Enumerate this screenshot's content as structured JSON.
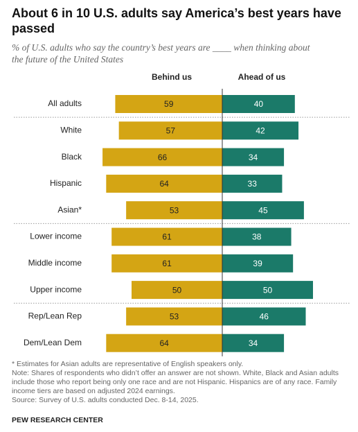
{
  "chart_data": {
    "type": "diverging-bar",
    "title": "About 6 in 10 U.S. adults say America’s best years have passed",
    "subtitle": "% of U.S. adults who say the country’s best years are ____ when thinking about the future of the United States",
    "categories": [
      "All adults",
      "White",
      "Black",
      "Hispanic",
      "Asian*",
      "Lower income",
      "Middle income",
      "Upper income",
      "Rep/Lean Rep",
      "Dem/Lean Dem"
    ],
    "series": [
      {
        "name": "Behind us",
        "color": "#d4a514",
        "values": [
          59,
          57,
          66,
          64,
          53,
          61,
          61,
          50,
          53,
          64
        ]
      },
      {
        "name": "Ahead of us",
        "color": "#1b7a69",
        "values": [
          40,
          42,
          34,
          33,
          45,
          38,
          39,
          50,
          46,
          34
        ]
      }
    ],
    "notes": [
      "* Estimates for Asian adults are representative of English speakers only.",
      "Note: Shares of respondents who didn’t offer an answer are not shown. White, Black and Asian adults include those who report being only one race and are not Hispanic. Hispanics are of any race. Family income tiers are based on adjusted 2024 earnings.",
      "Source: Survey of U.S. adults conducted Dec. 8-14, 2025."
    ],
    "source_org": "PEW RESEARCH CENTER"
  }
}
